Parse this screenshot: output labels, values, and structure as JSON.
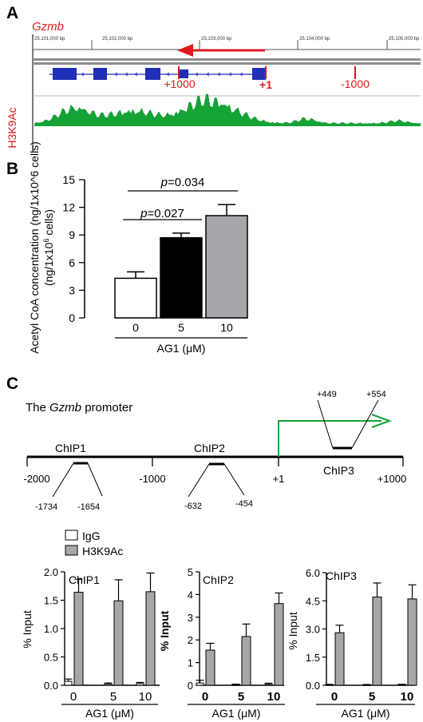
{
  "panels": {
    "a": {
      "label": "A",
      "gene": "Gzmb",
      "track_label": "H3K9Ac",
      "coords": [
        "25,101,000 bp",
        "25,102,000 bp",
        "25,103,000 bp",
        "25,104,000 bp",
        "25,105,000 bp"
      ],
      "markers": [
        "+1000",
        "+1",
        "-1000"
      ]
    },
    "b": {
      "label": "B"
    },
    "c": {
      "label": "C",
      "promoter_prefix": "The ",
      "promoter_gene": "Gzmb",
      "promoter_suffix": " promoter",
      "line_ticks": [
        "-2000",
        "-1000",
        "+1",
        "+1000"
      ],
      "chip_names": [
        "ChIP1",
        "ChIP2",
        "ChIP3"
      ],
      "chip_coords": [
        "-1734",
        "-1654",
        "-632",
        "-454",
        "+449",
        "+554"
      ]
    }
  },
  "colors": {
    "red": "#e0191c",
    "blue": "#1f2fb8",
    "green": "#16a336",
    "black": "#000000",
    "gray": "#a7a7ab"
  },
  "chart_data": [
    {
      "type": "bar",
      "ylabel": "Acetyl CoA concentration (ng/1x10^6 cells)",
      "xlabel": "AG1 (μM)",
      "categories": [
        "0",
        "5",
        "10"
      ],
      "values": [
        4.3,
        8.7,
        11.1
      ],
      "errors": [
        0.7,
        0.5,
        1.2
      ],
      "bar_colors": [
        "#ffffff",
        "#000000",
        "#a7a7ab"
      ],
      "ylim": [
        0,
        15
      ],
      "yticks": [
        "0",
        "3",
        "6",
        "9",
        "12",
        "15"
      ],
      "annotations": [
        {
          "text": "p=0.027",
          "from": "0",
          "to": "5"
        },
        {
          "text": "p=0.034",
          "from": "0",
          "to": "10"
        }
      ]
    },
    {
      "type": "bar",
      "title": "ChIP1",
      "ylabel": "% Input",
      "xlabel": "AG1 (μM)",
      "categories": [
        "0",
        "5",
        "10"
      ],
      "series": [
        {
          "name": "IgG",
          "values": [
            0.07,
            0.02,
            0.03
          ],
          "errors": [
            0.04,
            0.02,
            0.02
          ]
        },
        {
          "name": "H3K9Ac",
          "values": [
            1.64,
            1.49,
            1.65
          ],
          "errors": [
            0.23,
            0.37,
            0.33
          ]
        }
      ],
      "ylim": [
        0,
        2.0
      ],
      "yticks": [
        "0.0",
        "0.5",
        "1.0",
        "1.5",
        "2.0"
      ]
    },
    {
      "type": "bar",
      "title": "ChIP2",
      "ylabel": "% Input",
      "xlabel": "AG1 (μM)",
      "categories": [
        "0",
        "5",
        "10"
      ],
      "series": [
        {
          "name": "IgG",
          "values": [
            0.1,
            0.02,
            0.04
          ],
          "errors": [
            0.12,
            0.03,
            0.05
          ]
        },
        {
          "name": "H3K9Ac",
          "values": [
            1.55,
            2.15,
            3.6
          ],
          "errors": [
            0.3,
            0.55,
            0.47
          ]
        }
      ],
      "ylim": [
        0,
        5
      ],
      "yticks": [
        "0",
        "1",
        "2",
        "3",
        "4",
        "5"
      ]
    },
    {
      "type": "bar",
      "title": "ChIP3",
      "ylabel": "% Input",
      "xlabel": "AG1 (μM)",
      "categories": [
        "0",
        "5",
        "10"
      ],
      "series": [
        {
          "name": "IgG",
          "values": [
            0.03,
            0.02,
            0.03
          ],
          "errors": [
            0.02,
            0.02,
            0.02
          ]
        },
        {
          "name": "H3K9Ac",
          "values": [
            2.8,
            4.7,
            4.6
          ],
          "errors": [
            0.4,
            0.75,
            0.75
          ]
        }
      ],
      "ylim": [
        0,
        6.0
      ],
      "yticks": [
        "0.0",
        "1.5",
        "3.0",
        "4.5",
        "6.0"
      ]
    }
  ],
  "legend": [
    "IgG",
    "H3K9Ac"
  ]
}
